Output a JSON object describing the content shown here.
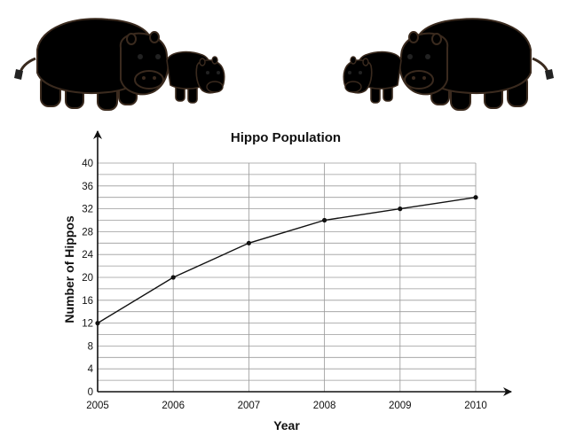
{
  "chart_data": {
    "type": "line",
    "title": "Hippo Population",
    "xlabel": "Year",
    "ylabel": "Number of Hippos",
    "x": [
      2005,
      2006,
      2007,
      2008,
      2009,
      2010
    ],
    "series": [
      {
        "values": [
          12,
          20,
          26,
          30,
          32,
          34
        ]
      }
    ],
    "ylim": [
      0,
      40
    ],
    "yticks": [
      0,
      4,
      8,
      12,
      16,
      20,
      24,
      28,
      32,
      36,
      40
    ],
    "xticks": [
      "2005",
      "2006",
      "2007",
      "2008",
      "2009",
      "2010"
    ],
    "minor_grid_step": 2,
    "grid": true,
    "legend": "none",
    "colors": {
      "line": "#111111",
      "grid": "#9a9a9a",
      "hippo_left": "#d39c6c",
      "hippo_right": "#a8704c"
    }
  },
  "illustration": {
    "left_icon": "hippo-adult-and-calf-icon",
    "right_icon": "hippo-adult-and-calf-icon"
  }
}
